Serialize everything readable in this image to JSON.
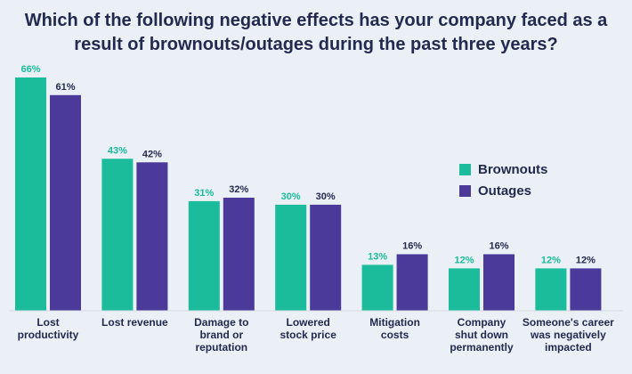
{
  "chart_data": {
    "type": "bar",
    "title_lines": [
      "Which of the following negative effects has your company faced as a",
      "result of brownouts/outages during the past three years?"
    ],
    "categories": [
      [
        "Lost",
        "productivity"
      ],
      [
        "Lost revenue"
      ],
      [
        "Damage to",
        "brand or",
        "reputation"
      ],
      [
        "Lowered",
        "stock price"
      ],
      [
        "Mitigation",
        "costs"
      ],
      [
        "Company",
        "shut down",
        "permanently"
      ],
      [
        "Someone's career",
        "was negatively",
        "impacted"
      ]
    ],
    "series": [
      {
        "name": "Brownouts",
        "color": "#1abc9c",
        "label_color": "#1abc9c",
        "values": [
          66,
          43,
          31,
          30,
          13,
          12,
          12
        ],
        "labels": [
          "66%",
          "43%",
          "31%",
          "30%",
          "13%",
          "12%",
          "12%"
        ]
      },
      {
        "name": "Outages",
        "color": "#4b3a9a",
        "label_color": "#232a4f",
        "values": [
          61,
          42,
          32,
          30,
          16,
          16,
          12
        ],
        "labels": [
          "61%",
          "42%",
          "32%",
          "30%",
          "16%",
          "16%",
          "12%"
        ]
      }
    ],
    "ylim": [
      0,
      66
    ],
    "unit": "%",
    "legend_position": "right"
  }
}
